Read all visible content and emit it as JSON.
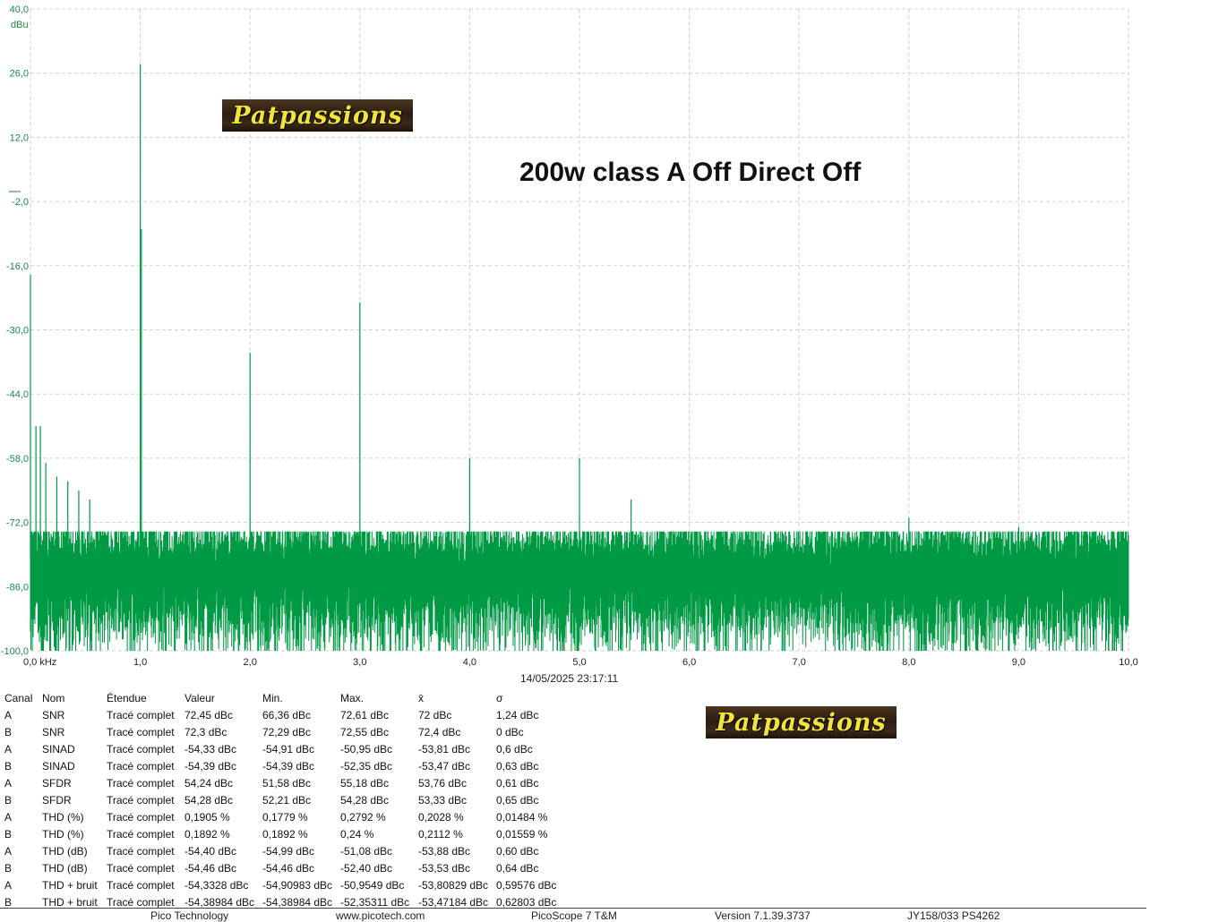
{
  "title": "200w class A Off Direct Off",
  "logo_text": "Patpassions",
  "timestamp": "14/05/2025 23:17:11",
  "chart_data": {
    "type": "line",
    "ylabel": "dBu",
    "xlabel": "",
    "x_unit": "kHz",
    "xlim": [
      0,
      10
    ],
    "ylim": [
      -100,
      40
    ],
    "grid": true,
    "yticks": [
      "40,0",
      "26,0",
      "12,0",
      "-2,0",
      "-16,0",
      "-30,0",
      "-44,0",
      "-58,0",
      "-72,0",
      "-86,0",
      "-100,0"
    ],
    "ytick_values": [
      40,
      26,
      12,
      -2,
      -16,
      -30,
      -44,
      -58,
      -72,
      -86,
      -100
    ],
    "xticks": [
      "0,0 kHz",
      "1,0",
      "2,0",
      "3,0",
      "4,0",
      "5,0",
      "6,0",
      "7,0",
      "8,0",
      "9,0",
      "10,0"
    ],
    "xtick_values": [
      0,
      1,
      2,
      3,
      4,
      5,
      6,
      7,
      8,
      9,
      10
    ],
    "series_color": "#009944",
    "noise_floor_dbu": [
      -100,
      -74
    ],
    "peaks": [
      {
        "x": 0.0,
        "y": -18
      },
      {
        "x": 0.05,
        "y": -51
      },
      {
        "x": 0.09,
        "y": -51
      },
      {
        "x": 0.14,
        "y": -59
      },
      {
        "x": 0.24,
        "y": -62
      },
      {
        "x": 0.34,
        "y": -63
      },
      {
        "x": 0.44,
        "y": -65
      },
      {
        "x": 0.54,
        "y": -67
      },
      {
        "x": 1.0,
        "y": 28
      },
      {
        "x": 1.01,
        "y": -8
      },
      {
        "x": 2.0,
        "y": -35
      },
      {
        "x": 3.0,
        "y": -24
      },
      {
        "x": 4.0,
        "y": -58
      },
      {
        "x": 5.0,
        "y": -58
      },
      {
        "x": 5.47,
        "y": -67
      },
      {
        "x": 8.0,
        "y": -71
      },
      {
        "x": 9.0,
        "y": -73
      }
    ]
  },
  "measurements": {
    "headers": [
      "Canal",
      "Nom",
      "Étendue",
      "Valeur",
      "Min.",
      "Max.",
      "x̄",
      "σ"
    ],
    "rows": [
      [
        "A",
        "SNR",
        "Tracé complet",
        "72,45 dBc",
        "66,36 dBc",
        "72,61 dBc",
        "72 dBc",
        "1,24 dBc"
      ],
      [
        "B",
        "SNR",
        "Tracé complet",
        "72,3 dBc",
        "72,29 dBc",
        "72,55 dBc",
        "72,4 dBc",
        "0 dBc"
      ],
      [
        "A",
        "SINAD",
        "Tracé complet",
        "-54,33 dBc",
        "-54,91 dBc",
        "-50,95 dBc",
        "-53,81 dBc",
        "0,6 dBc"
      ],
      [
        "B",
        "SINAD",
        "Tracé complet",
        "-54,39 dBc",
        "-54,39 dBc",
        "-52,35 dBc",
        "-53,47 dBc",
        "0,63 dBc"
      ],
      [
        "A",
        "SFDR",
        "Tracé complet",
        "54,24 dBc",
        "51,58 dBc",
        "55,18 dBc",
        "53,76 dBc",
        "0,61 dBc"
      ],
      [
        "B",
        "SFDR",
        "Tracé complet",
        "54,28 dBc",
        "52,21 dBc",
        "54,28 dBc",
        "53,33 dBc",
        "0,65 dBc"
      ],
      [
        "A",
        "THD (%)",
        "Tracé complet",
        "0,1905 %",
        "0,1779 %",
        "0,2792 %",
        "0,2028 %",
        "0,01484 %"
      ],
      [
        "B",
        "THD (%)",
        "Tracé complet",
        "0,1892 %",
        "0,1892 %",
        "0,24 %",
        "0,2112 %",
        "0,01559 %"
      ],
      [
        "A",
        "THD (dB)",
        "Tracé complet",
        "-54,40 dBc",
        "-54,99 dBc",
        "-51,08 dBc",
        "-53,88 dBc",
        "0,60 dBc"
      ],
      [
        "B",
        "THD (dB)",
        "Tracé complet",
        "-54,46 dBc",
        "-54,46 dBc",
        "-52,40 dBc",
        "-53,53 dBc",
        "0,64 dBc"
      ],
      [
        "A",
        "THD + bruit",
        "Tracé complet",
        "-54,3328 dBc",
        "-54,90983 dBc",
        "-50,9549 dBc",
        "-53,80829 dBc",
        "0,59576 dBc"
      ],
      [
        "B",
        "THD + bruit",
        "Tracé complet",
        "-54,38984 dBc",
        "-54,38984 dBc",
        "-52,35311 dBc",
        "-53,47184 dBc",
        "0,62803 dBc"
      ]
    ]
  },
  "footer": {
    "company": "Pico Technology",
    "website": "www.picotech.com",
    "product": "PicoScope 7 T&M",
    "version": "Version 7.1.39.3737",
    "device": "JY158/033 PS4262"
  }
}
